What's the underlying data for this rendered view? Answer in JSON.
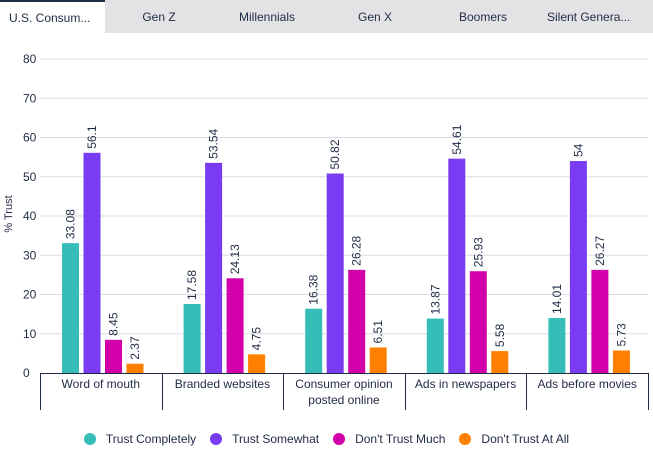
{
  "tabs": [
    {
      "label": "U.S. Consum..."
    },
    {
      "label": "Gen Z"
    },
    {
      "label": "Millennials"
    },
    {
      "label": "Gen X"
    },
    {
      "label": "Boomers"
    },
    {
      "label": "Silent Genera..."
    }
  ],
  "active_tab": 0,
  "chart_data": {
    "type": "bar",
    "ylabel": "% Trust",
    "xlabel": "",
    "ylim": [
      0,
      80
    ],
    "yticks": [
      0,
      10,
      20,
      30,
      40,
      50,
      60,
      70,
      80
    ],
    "grid": true,
    "legend_position": "bottom",
    "categories": [
      [
        "Word of mouth"
      ],
      [
        "Branded websites"
      ],
      [
        "Consumer opinion",
        "posted online"
      ],
      [
        "Ads in newspapers"
      ],
      [
        "Ads before movies"
      ]
    ],
    "series": [
      {
        "name": "Trust Completely",
        "color": "#36bdb8",
        "values": [
          33.08,
          17.58,
          16.38,
          13.87,
          14.01
        ]
      },
      {
        "name": "Trust Somewhat",
        "color": "#7a3cf2",
        "values": [
          56.1,
          53.54,
          50.82,
          54.61,
          54
        ]
      },
      {
        "name": "Don't Trust Much",
        "color": "#d100a8",
        "values": [
          8.45,
          24.13,
          26.28,
          25.93,
          26.27
        ]
      },
      {
        "name": "Don't Trust At All",
        "color": "#ff8000",
        "values": [
          2.37,
          4.75,
          6.51,
          5.58,
          5.73
        ]
      }
    ]
  }
}
